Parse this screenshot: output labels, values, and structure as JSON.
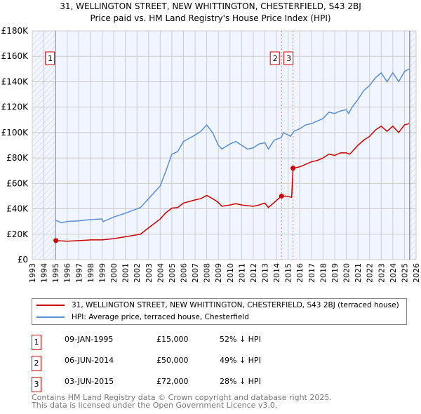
{
  "title": "31, WELLINGTON STREET, NEW WHITTINGTON, CHESTERFIELD, S43 2BJ",
  "subtitle": "Price paid vs. HM Land Registry's House Price Index (HPI)",
  "chart_data": {
    "type": "line",
    "xlim": [
      1993,
      2026
    ],
    "ylim": [
      0,
      180000
    ],
    "yticks": [
      0,
      20000,
      40000,
      60000,
      80000,
      100000,
      120000,
      140000,
      160000,
      180000
    ],
    "ytick_labels": [
      "£0",
      "£20K",
      "£40K",
      "£60K",
      "£80K",
      "£100K",
      "£120K",
      "£140K",
      "£160K",
      "£180K"
    ],
    "xticks": [
      1993,
      1994,
      1995,
      1996,
      1997,
      1998,
      1999,
      2000,
      2001,
      2002,
      2003,
      2004,
      2005,
      2006,
      2007,
      2008,
      2009,
      2010,
      2011,
      2012,
      2013,
      2014,
      2015,
      2016,
      2017,
      2018,
      2019,
      2020,
      2021,
      2022,
      2023,
      2024,
      2025,
      2026
    ],
    "series": [
      {
        "name": "31, WELLINGTON STREET, NEW WHITTINGTON, CHESTERFIELD, S43 2BJ (terraced house)",
        "color": "#cc0000",
        "x": [
          1995.03,
          1996,
          1997,
          1998,
          1999,
          2000,
          2001,
          2002,
          2002.3,
          2003,
          2004,
          2004.5,
          2005,
          2005.5,
          2006,
          2007,
          2007.5,
          2008,
          2008.5,
          2009,
          2009.3,
          2010,
          2010.5,
          2011,
          2012,
          2012.5,
          2013,
          2013.3,
          2013.8,
          2014.43,
          2014.8,
          2015.3,
          2015.42,
          2016,
          2016.5,
          2017,
          2017.5,
          2018,
          2018.5,
          2019,
          2019.5,
          2020,
          2020.3,
          2020.6,
          2021,
          2021.5,
          2022,
          2022.5,
          2023,
          2023.5,
          2024,
          2024.5,
          2025,
          2025.4
        ],
        "y": [
          15000,
          14500,
          15000,
          15500,
          15500,
          16500,
          18000,
          19500,
          20000,
          25000,
          32000,
          37000,
          40500,
          41000,
          44500,
          47000,
          48000,
          50500,
          48000,
          45000,
          42000,
          43000,
          44000,
          43000,
          42000,
          43000,
          44500,
          41000,
          45000,
          50000,
          50000,
          49000,
          72000,
          73000,
          75000,
          77000,
          78000,
          80000,
          83000,
          82000,
          84000,
          84000,
          83000,
          86000,
          90000,
          94000,
          97000,
          102000,
          105000,
          101000,
          105000,
          100000,
          106000,
          107000
        ]
      },
      {
        "name": "HPI: Average price, terraced house, Chesterfield",
        "color": "#5b8fd4",
        "x": [
          1995,
          1995.5,
          1996,
          1997,
          1998,
          1999,
          1999.1,
          2000,
          2001,
          2002,
          2002.3,
          2003,
          2004,
          2004.5,
          2005,
          2005.5,
          2006,
          2007,
          2007.5,
          2008,
          2008.5,
          2009,
          2009.3,
          2010,
          2010.5,
          2011,
          2011.5,
          2012,
          2012.5,
          2013,
          2013.3,
          2013.8,
          2014.4,
          2014.6,
          2015.2,
          2015.5,
          2016,
          2016.5,
          2017,
          2017.5,
          2018,
          2018.5,
          2019,
          2019.5,
          2020,
          2020.2,
          2020.5,
          2021,
          2021.5,
          2022,
          2022.5,
          2023,
          2023.5,
          2024,
          2024.5,
          2025,
          2025.4
        ],
        "y": [
          31000,
          29000,
          30000,
          30500,
          31500,
          32000,
          30000,
          33500,
          36500,
          40000,
          41000,
          48000,
          58000,
          70000,
          83000,
          85000,
          93000,
          98000,
          101000,
          106000,
          100000,
          90000,
          87000,
          91000,
          93000,
          90000,
          87000,
          88000,
          91000,
          92000,
          87000,
          94000,
          96000,
          100000,
          97000,
          101000,
          103000,
          106000,
          107000,
          109000,
          111000,
          116000,
          115000,
          117000,
          118000,
          115000,
          120000,
          126000,
          133000,
          137000,
          143000,
          147000,
          140000,
          147000,
          140000,
          148000,
          150000
        ]
      }
    ],
    "sales": [
      {
        "label": "1",
        "x": 1995.03,
        "y": 15000
      },
      {
        "label": "2",
        "x": 2014.43,
        "y": 50000
      },
      {
        "label": "3",
        "x": 2015.42,
        "y": 72000
      }
    ]
  },
  "legend": {
    "red": "31, WELLINGTON STREET, NEW WHITTINGTON, CHESTERFIELD, S43 2BJ (terraced house)",
    "blue": "HPI: Average price, terraced house, Chesterfield"
  },
  "transactions": [
    {
      "num": "1",
      "date": "09-JAN-1995",
      "price": "£15,000",
      "hpi": "52% ↓ HPI"
    },
    {
      "num": "2",
      "date": "06-JUN-2014",
      "price": "£50,000",
      "hpi": "49% ↓ HPI"
    },
    {
      "num": "3",
      "date": "03-JUN-2015",
      "price": "£72,000",
      "hpi": "28% ↓ HPI"
    }
  ],
  "footer": [
    "Contains HM Land Registry data © Crown copyright and database right 2025.",
    "This data is licensed under the Open Government Licence v3.0."
  ]
}
